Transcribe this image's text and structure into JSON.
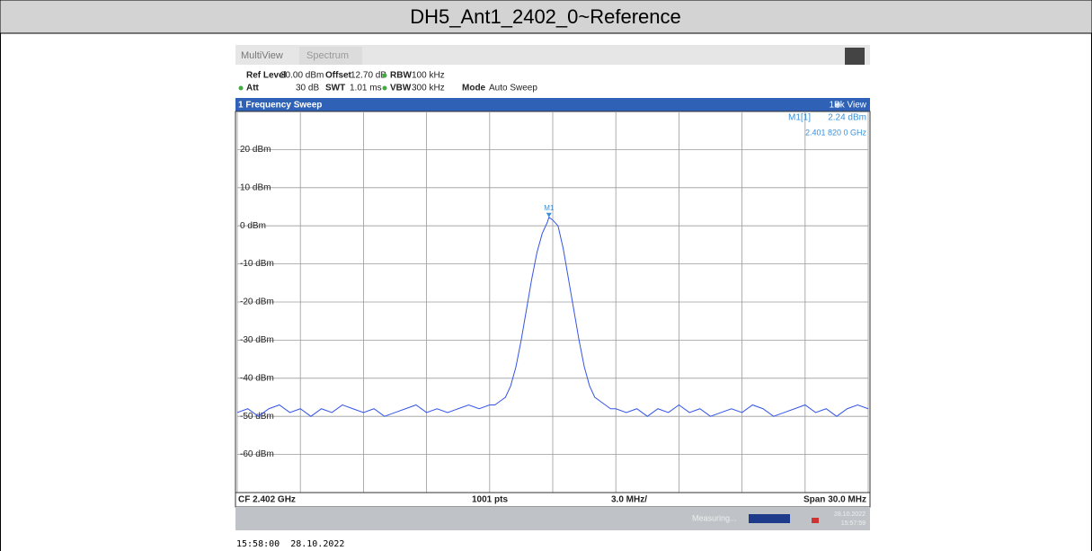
{
  "page_title": "DH5_Ant1_2402_0~Reference",
  "ui": {
    "tabs": [
      "MultiView",
      "Spectrum"
    ],
    "settings_row1": [
      "Ref Level",
      "30.00 dBm",
      "Offset",
      "12.70 dB",
      "RBW",
      "100 kHz"
    ],
    "settings_row2": [
      "Att",
      "30 dB",
      "SWT",
      "1.01 ms",
      "VBW",
      "300 kHz",
      "Mode",
      "Auto Sweep"
    ],
    "window_title": "1 Frequency Sweep",
    "view_label": "1Pk View",
    "footer": [
      "CF 2.402 GHz",
      "1001 pts",
      "3.0 MHz/",
      "Span 30.0 MHz"
    ],
    "status": "Measuring...",
    "status_date": "28.10.2022",
    "status_time": "15:57:59",
    "timestamp": "15:58:00  28.10.2022"
  },
  "chart_data": {
    "type": "line",
    "xlim": [
      2.387,
      2.417
    ],
    "xticks": [
      2.387,
      2.39,
      2.393,
      2.396,
      2.399,
      2.402,
      2.405,
      2.408,
      2.411,
      2.414,
      2.417
    ],
    "ylim": [
      -70,
      30
    ],
    "yticks": [
      {
        "value": 20,
        "label": "20 dBm"
      },
      {
        "value": 10,
        "label": "10 dBm"
      },
      {
        "value": 0,
        "label": "0 dBm"
      },
      {
        "value": -10,
        "label": "-10 dBm"
      },
      {
        "value": -20,
        "label": "-20 dBm"
      },
      {
        "value": -30,
        "label": "-30 dBm"
      },
      {
        "value": -40,
        "label": "-40 dBm"
      },
      {
        "value": -50,
        "label": "-50 dBm"
      },
      {
        "value": -60,
        "label": "-60 dBm"
      }
    ],
    "grid": true,
    "series": [
      {
        "color": "#3355e8",
        "x": [
          2.387,
          2.3875,
          2.388,
          2.3885,
          2.389,
          2.3895,
          2.39,
          2.3905,
          2.391,
          2.3915,
          2.392,
          2.3925,
          2.393,
          2.3935,
          2.394,
          2.3945,
          2.395,
          2.3955,
          2.396,
          2.3965,
          2.397,
          2.3975,
          2.398,
          2.3985,
          2.399,
          2.39925,
          2.3995,
          2.39975,
          2.4,
          2.40025,
          2.4005,
          2.40075,
          2.401,
          2.40125,
          2.4015,
          2.40175,
          2.40182,
          2.402,
          2.40225,
          2.4025,
          2.40275,
          2.403,
          2.40325,
          2.4035,
          2.40375,
          2.404,
          2.40425,
          2.4045,
          2.40475,
          2.405,
          2.4055,
          2.406,
          2.4065,
          2.407,
          2.4075,
          2.408,
          2.4085,
          2.409,
          2.4095,
          2.41,
          2.4105,
          2.411,
          2.4115,
          2.412,
          2.4125,
          2.413,
          2.4135,
          2.414,
          2.4145,
          2.415,
          2.4155,
          2.416,
          2.4165,
          2.417
        ],
        "values": [
          -49,
          -48,
          -50,
          -48,
          -47,
          -49,
          -48,
          -50,
          -48,
          -49,
          -47,
          -48,
          -49,
          -48,
          -50,
          -49,
          -48,
          -47,
          -49,
          -48,
          -49,
          -48,
          -47,
          -48,
          -47,
          -47,
          -46,
          -45,
          -42,
          -37,
          -30,
          -22,
          -14,
          -7,
          -2,
          1,
          2.24,
          1.5,
          0,
          -6,
          -14,
          -22,
          -30,
          -37,
          -42,
          -45,
          -46,
          -47,
          -48,
          -48,
          -49,
          -48,
          -50,
          -48,
          -49,
          -47,
          -49,
          -48,
          -50,
          -49,
          -48,
          -49,
          -47,
          -48,
          -50,
          -49,
          -48,
          -47,
          -49,
          -48,
          -50,
          -48,
          -47,
          -48
        ]
      }
    ],
    "marker": {
      "name": "M1",
      "readout_name": "M1[1]",
      "x": 2.40182,
      "y": 2.24,
      "y_label": "2.24 dBm",
      "x_label": "2.401 820 0 GHz"
    }
  }
}
